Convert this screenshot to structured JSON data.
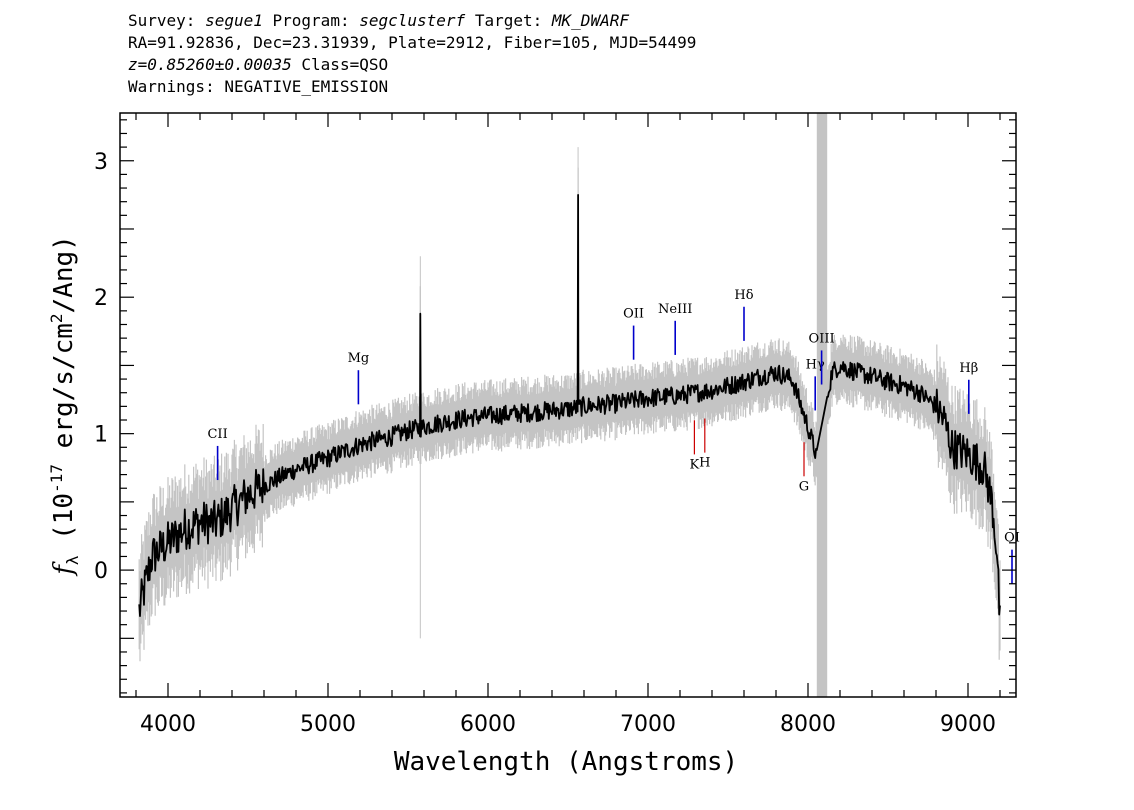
{
  "header": {
    "survey_label": "Survey:",
    "survey": "segue1",
    "program_label": "Program:",
    "program": "segclusterf",
    "target_label": "Target:",
    "target": "MK_DWARF",
    "line2": "RA=91.92836, Dec=23.31939, Plate=2912, Fiber=105, MJD=54499",
    "redshift": "z=0.85260±0.00035",
    "class_text": "Class=QSO",
    "warnings": "Warnings: NEGATIVE_EMISSION"
  },
  "chart_data": {
    "type": "line",
    "xlabel": "Wavelength (Angstroms)",
    "ylabel": "f_λ (10^-17 erg/s/cm^2/Ang)",
    "xlim": [
      3700,
      9300
    ],
    "ylim": [
      -0.93,
      3.35
    ],
    "x_ticks": [
      4000,
      5000,
      6000,
      7000,
      8000,
      9000
    ],
    "y_ticks": [
      0,
      1,
      2,
      3
    ],
    "colors": {
      "flux": "#000000",
      "error_band": "#c4c4c4",
      "mask_band": "#c4c4c4",
      "emission": "#0000cc",
      "absorption": "#cc0000"
    },
    "masked_region": [
      8055,
      8120
    ],
    "series": [
      {
        "x": [
          3820,
          3900,
          4000,
          4100,
          4200,
          4300,
          4400,
          4500,
          4600,
          4700,
          4800,
          4900,
          5000,
          5100,
          5200,
          5300,
          5400,
          5500,
          5600,
          5700,
          5800,
          5900,
          6000,
          6100,
          6200,
          6300,
          6400,
          6500,
          6600,
          6700,
          6800,
          6900,
          7000,
          7100,
          7200,
          7300,
          7400,
          7500,
          7600,
          7700,
          7800,
          7900,
          8000,
          8050,
          8150,
          8200,
          8300,
          8400,
          8500,
          8600,
          8700,
          8800,
          8850,
          8900,
          9000,
          9100,
          9150,
          9180,
          9200
        ],
        "y": [
          -0.3,
          0.1,
          0.2,
          0.3,
          0.35,
          0.35,
          0.45,
          0.55,
          0.62,
          0.68,
          0.74,
          0.78,
          0.82,
          0.87,
          0.92,
          0.95,
          0.98,
          1.02,
          1.05,
          1.08,
          1.1,
          1.12,
          1.13,
          1.14,
          1.15,
          1.16,
          1.17,
          1.18,
          1.2,
          1.21,
          1.22,
          1.24,
          1.26,
          1.27,
          1.28,
          1.3,
          1.32,
          1.35,
          1.38,
          1.42,
          1.45,
          1.4,
          1.05,
          0.85,
          1.45,
          1.5,
          1.45,
          1.42,
          1.38,
          1.35,
          1.3,
          1.2,
          1.1,
          0.9,
          0.85,
          0.75,
          0.5,
          0.15,
          -0.4
        ],
        "spikes": [
          [
            5577,
            1.88
          ],
          [
            6563,
            2.75
          ]
        ]
      }
    ],
    "lines": [
      {
        "label": "CII",
        "wavelength": 4310,
        "kind": "emission"
      },
      {
        "label": "Mg",
        "wavelength": 5190,
        "kind": "emission"
      },
      {
        "label": "OII",
        "wavelength": 6910,
        "kind": "emission"
      },
      {
        "label": "NeIII",
        "wavelength": 7170,
        "kind": "emission"
      },
      {
        "label": "Hδ",
        "wavelength": 7600,
        "kind": "emission"
      },
      {
        "label": "Hγ",
        "wavelength": 8045,
        "kind": "emission"
      },
      {
        "label": "OIII",
        "wavelength": 8085,
        "kind": "emission"
      },
      {
        "label": "Hβ",
        "wavelength": 9005,
        "kind": "emission"
      },
      {
        "label": "OI",
        "wavelength": 9275,
        "kind": "emission"
      },
      {
        "label": "K",
        "wavelength": 7290,
        "kind": "absorption"
      },
      {
        "label": "H",
        "wavelength": 7355,
        "kind": "absorption"
      },
      {
        "label": "G",
        "wavelength": 7975,
        "kind": "absorption"
      }
    ]
  }
}
